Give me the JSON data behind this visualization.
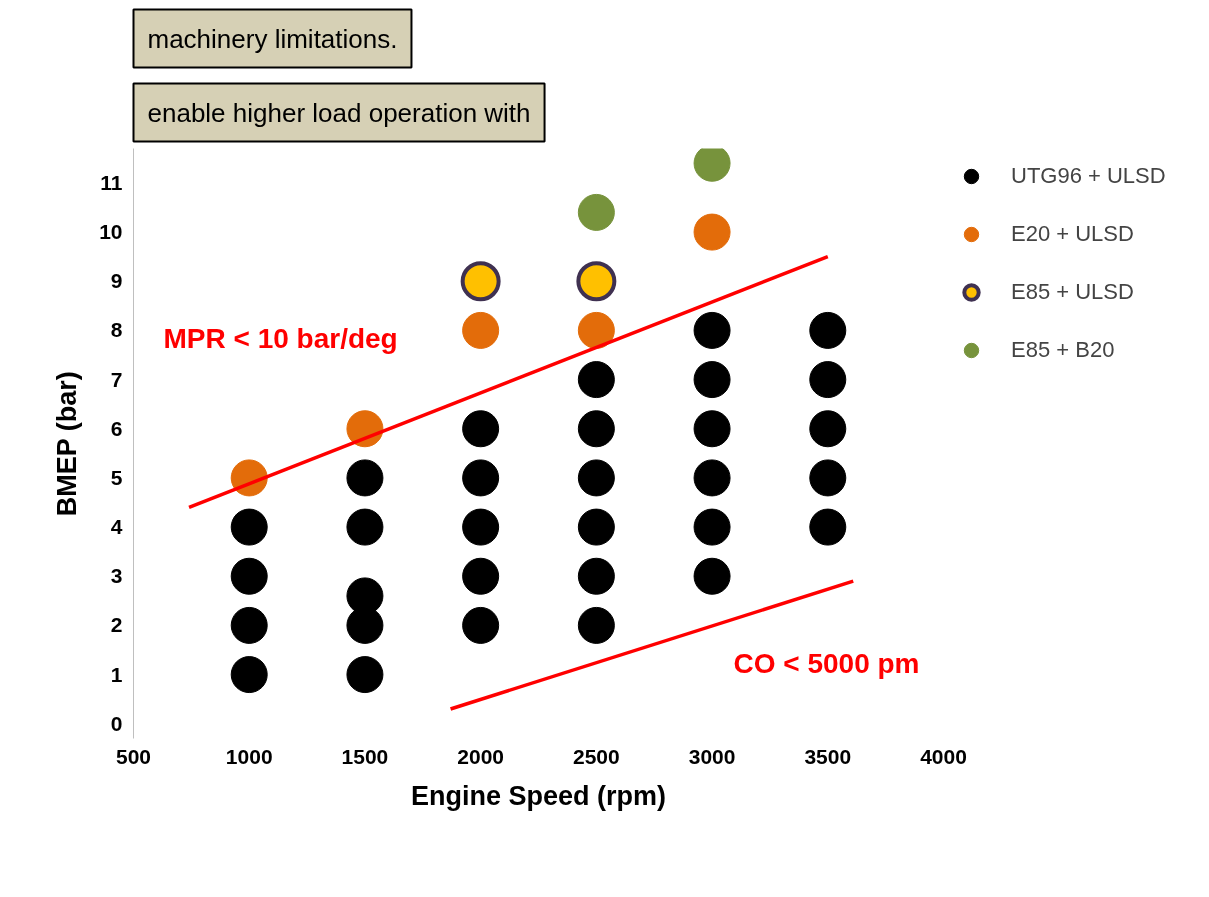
{
  "chart_data": {
    "type": "scatter",
    "xlabel": "Engine Speed (rpm)",
    "ylabel": "BMEP (bar)",
    "xlim": [
      500,
      4000
    ],
    "ylim": [
      -0.3,
      11.7
    ],
    "xticks": [
      500,
      1000,
      1500,
      2000,
      2500,
      3000,
      3500,
      4000
    ],
    "yticks": [
      0,
      1,
      2,
      3,
      4,
      5,
      6,
      7,
      8,
      9,
      10,
      11
    ],
    "grid": false,
    "legend": "top right",
    "marker": "circle",
    "series": [
      {
        "name": "UTG96 + ULSD",
        "color": "#000000",
        "x": [
          1000,
          1000,
          1000,
          1000,
          1500,
          1500,
          1500,
          1500,
          1500,
          2000,
          2000,
          2000,
          2000,
          2000,
          2500,
          2500,
          2500,
          2500,
          2500,
          2500,
          3000,
          3000,
          3000,
          3000,
          3000,
          3000,
          3500,
          3500,
          3500,
          3500,
          3500
        ],
        "values": [
          1,
          2,
          3,
          4,
          1,
          2,
          2.6,
          4,
          5,
          2,
          3,
          4,
          5,
          6,
          2,
          3,
          4,
          5,
          6,
          7,
          3,
          4,
          5,
          6,
          7,
          8,
          4,
          5,
          6,
          7,
          8
        ]
      },
      {
        "name": "E20 + ULSD",
        "color": "#e36c0a",
        "x": [
          1000,
          1500,
          2000,
          2500,
          3000
        ],
        "values": [
          5,
          6,
          8,
          8,
          10
        ]
      },
      {
        "name": "E85 + ULSD",
        "color": "#ffc000",
        "x": [
          2000,
          2500
        ],
        "values": [
          9,
          9
        ]
      },
      {
        "name": "E85 + B20",
        "color": "#77933c",
        "x": [
          2500,
          3000
        ],
        "values": [
          10.4,
          11.4
        ]
      },
      {
        "type": "line",
        "marker": "none",
        "color": "#ff0000",
        "x": [
          740,
          3500
        ],
        "values": [
          4.4,
          9.5
        ]
      },
      {
        "type": "line",
        "marker": "none",
        "color": "#ff0000",
        "x": [
          1870,
          3610
        ],
        "values": [
          0.3,
          2.9
        ]
      }
    ],
    "annotations": [
      "MPR < 10 bar/deg",
      "CO < 5000 pm",
      "machinery limitations.",
      "enable higher load operation with"
    ]
  }
}
